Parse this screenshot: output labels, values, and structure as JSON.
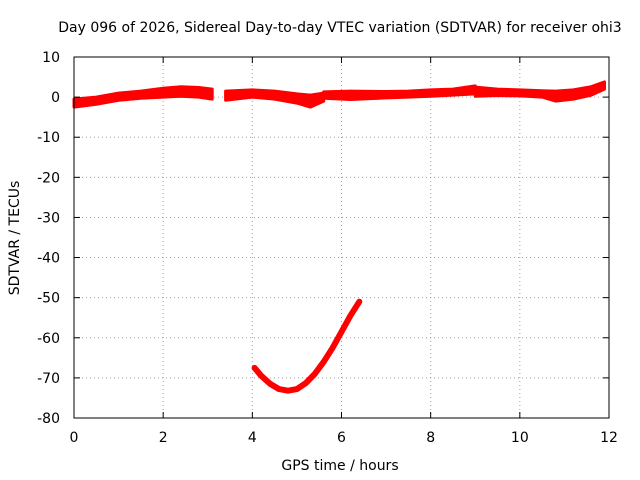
{
  "chart_data": {
    "type": "line",
    "title": "Day 096 of 2026, Sidereal Day-to-day VTEC variation (SDTVAR) for receiver ohi3",
    "xlabel": "GPS time / hours",
    "ylabel": "SDTVAR / TECUs",
    "xlim": [
      0,
      12
    ],
    "ylim": [
      -80,
      10
    ],
    "xticks": [
      0,
      2,
      4,
      6,
      8,
      10,
      12
    ],
    "yticks": [
      10,
      0,
      -10,
      -20,
      -30,
      -40,
      -50,
      -60,
      -70,
      -80
    ],
    "grid": true,
    "series_color": "#ff0000",
    "series": [
      {
        "name": "band-1",
        "kind": "band",
        "x": [
          0.0,
          0.5,
          1.0,
          1.5,
          2.0,
          2.4,
          2.8,
          3.1
        ],
        "lower": [
          -2.5,
          -1.8,
          -0.8,
          -0.3,
          0.0,
          0.2,
          0.0,
          -0.5
        ],
        "upper": [
          -0.5,
          0.0,
          1.0,
          1.5,
          2.2,
          2.6,
          2.4,
          2.0
        ]
      },
      {
        "name": "band-2",
        "kind": "band",
        "x": [
          3.4,
          4.0,
          4.5,
          5.0,
          5.3,
          5.6
        ],
        "lower": [
          -0.8,
          0.0,
          -0.5,
          -1.5,
          -2.5,
          -1.0
        ],
        "upper": [
          1.5,
          1.8,
          1.5,
          0.8,
          0.5,
          1.0
        ]
      },
      {
        "name": "band-3",
        "kind": "band",
        "x": [
          5.6,
          6.2,
          7.0,
          7.5,
          8.0,
          8.5,
          9.0
        ],
        "lower": [
          -0.3,
          -0.6,
          -0.2,
          0.0,
          0.2,
          0.5,
          0.8
        ],
        "upper": [
          1.3,
          1.5,
          1.4,
          1.5,
          1.8,
          2.0,
          2.8
        ]
      },
      {
        "name": "band-4",
        "kind": "band",
        "x": [
          9.0,
          9.5,
          10.0,
          10.5,
          10.8,
          11.2,
          11.6,
          11.9
        ],
        "lower": [
          0.2,
          0.4,
          0.3,
          0.0,
          -1.0,
          -0.5,
          0.5,
          2.0
        ],
        "upper": [
          2.5,
          2.0,
          1.8,
          1.6,
          1.5,
          1.8,
          2.6,
          3.8
        ]
      },
      {
        "name": "arc-1",
        "kind": "line",
        "x": [
          4.05,
          4.2,
          4.4,
          4.6,
          4.8,
          5.0,
          5.2,
          5.4,
          5.6,
          5.8,
          6.0,
          6.2,
          6.4
        ],
        "y": [
          -67.5,
          -69.5,
          -71.5,
          -72.8,
          -73.2,
          -72.8,
          -71.3,
          -69.0,
          -66.0,
          -62.5,
          -58.5,
          -54.5,
          -51.0
        ]
      }
    ]
  }
}
